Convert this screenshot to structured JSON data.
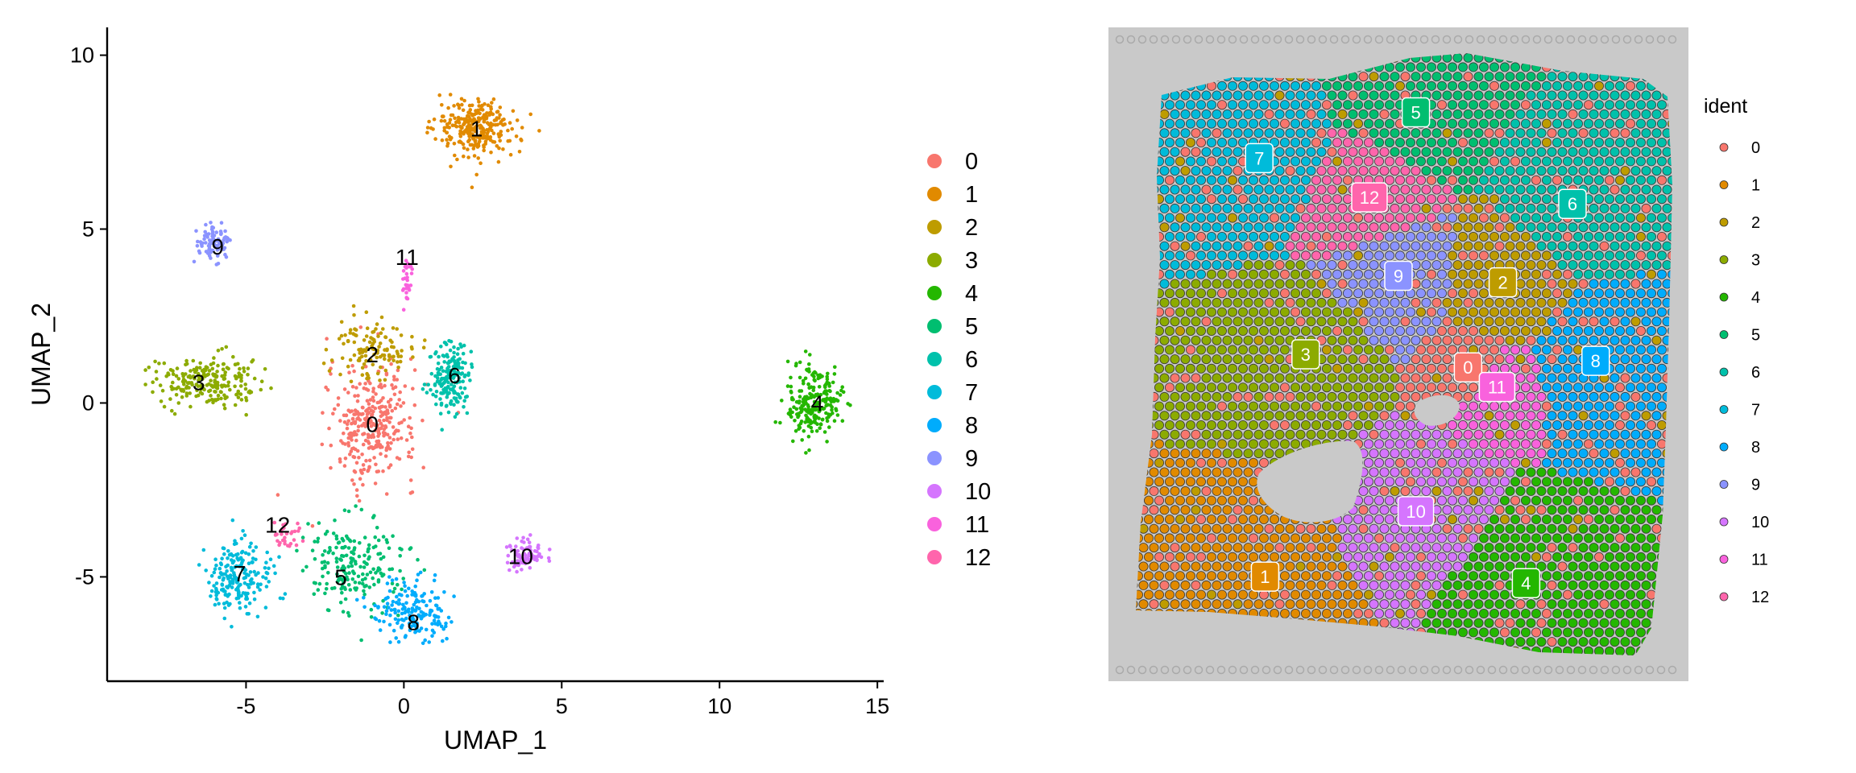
{
  "colors": [
    "#F8766D",
    "#E18A00",
    "#BE9C00",
    "#8CAB00",
    "#24B700",
    "#00BE70",
    "#00C1AB",
    "#00BBDA",
    "#00ACFC",
    "#8B93FF",
    "#D575FE",
    "#F962DD",
    "#FF65AC"
  ],
  "chart_data": [
    {
      "type": "scatter",
      "title": "",
      "xlabel": "UMAP_1",
      "ylabel": "UMAP_2",
      "xlim": [
        -9.4,
        15.2
      ],
      "ylim": [
        -8.0,
        10.8
      ],
      "x_ticks": [
        -5,
        0,
        5,
        10,
        15
      ],
      "y_ticks": [
        -5,
        0,
        5,
        10
      ],
      "x_tick_labels": [
        "-5",
        "0",
        "5",
        "10",
        "15"
      ],
      "y_tick_labels": [
        "-5",
        "0",
        "5",
        "10"
      ],
      "grid": false,
      "legend_position": "right",
      "legend_labels": [
        "0",
        "1",
        "2",
        "3",
        "4",
        "5",
        "6",
        "7",
        "8",
        "9",
        "10",
        "11",
        "12"
      ],
      "cluster_labels": [
        {
          "label": "0",
          "x": -1.0,
          "y": -0.6
        },
        {
          "label": "1",
          "x": 2.3,
          "y": 7.9
        },
        {
          "label": "2",
          "x": -1.0,
          "y": 1.4
        },
        {
          "label": "3",
          "x": -6.5,
          "y": 0.6
        },
        {
          "label": "4",
          "x": 13.1,
          "y": 0.0
        },
        {
          "label": "5",
          "x": -2.0,
          "y": -5.0
        },
        {
          "label": "6",
          "x": 1.6,
          "y": 0.8
        },
        {
          "label": "7",
          "x": -5.2,
          "y": -4.9
        },
        {
          "label": "8",
          "x": 0.3,
          "y": -6.3
        },
        {
          "label": "9",
          "x": -5.9,
          "y": 4.5
        },
        {
          "label": "10",
          "x": 3.7,
          "y": -4.4
        },
        {
          "label": "11",
          "x": 0.1,
          "y": 4.2
        },
        {
          "label": "12",
          "x": -4.0,
          "y": -3.5
        }
      ],
      "clusters": [
        {
          "id": 0,
          "n": 320,
          "cx": -1.0,
          "cy": -0.6,
          "sx": 1.0,
          "sy": 1.2
        },
        {
          "id": 1,
          "n": 280,
          "cx": 2.3,
          "cy": 7.9,
          "sx": 0.9,
          "sy": 0.6
        },
        {
          "id": 2,
          "n": 120,
          "cx": -1.0,
          "cy": 1.6,
          "sx": 0.9,
          "sy": 0.6
        },
        {
          "id": 3,
          "n": 220,
          "cx": -6.3,
          "cy": 0.6,
          "sx": 1.2,
          "sy": 0.5
        },
        {
          "id": 4,
          "n": 240,
          "cx": 13.0,
          "cy": 0.0,
          "sx": 0.6,
          "sy": 0.7
        },
        {
          "id": 5,
          "n": 200,
          "cx": -1.6,
          "cy": -4.6,
          "sx": 1.1,
          "sy": 1.0
        },
        {
          "id": 6,
          "n": 180,
          "cx": 1.5,
          "cy": 0.7,
          "sx": 0.5,
          "sy": 0.7
        },
        {
          "id": 7,
          "n": 200,
          "cx": -5.2,
          "cy": -5.0,
          "sx": 0.7,
          "sy": 0.7
        },
        {
          "id": 8,
          "n": 170,
          "cx": 0.3,
          "cy": -6.0,
          "sx": 0.8,
          "sy": 0.6
        },
        {
          "id": 9,
          "n": 80,
          "cx": -6.0,
          "cy": 4.6,
          "sx": 0.4,
          "sy": 0.4
        },
        {
          "id": 10,
          "n": 80,
          "cx": 3.8,
          "cy": -4.4,
          "sx": 0.5,
          "sy": 0.3
        },
        {
          "id": 11,
          "n": 30,
          "cx": 0.1,
          "cy": 3.6,
          "sx": 0.1,
          "sy": 0.5
        },
        {
          "id": 12,
          "n": 30,
          "cx": -3.8,
          "cy": -3.8,
          "sx": 0.4,
          "sy": 0.3
        }
      ]
    },
    {
      "type": "scatter",
      "title": "",
      "legend_title": "ident",
      "legend_position": "right",
      "legend_labels": [
        "0",
        "1",
        "2",
        "3",
        "4",
        "5",
        "6",
        "7",
        "8",
        "9",
        "10",
        "11",
        "12"
      ],
      "region_labels": [
        {
          "label": "5",
          "x": 0.53,
          "y": 0.13
        },
        {
          "label": "7",
          "x": 0.26,
          "y": 0.2
        },
        {
          "label": "12",
          "x": 0.45,
          "y": 0.26
        },
        {
          "label": "6",
          "x": 0.8,
          "y": 0.27
        },
        {
          "label": "9",
          "x": 0.5,
          "y": 0.38
        },
        {
          "label": "2",
          "x": 0.68,
          "y": 0.39
        },
        {
          "label": "3",
          "x": 0.34,
          "y": 0.5
        },
        {
          "label": "8",
          "x": 0.84,
          "y": 0.51
        },
        {
          "label": "0",
          "x": 0.62,
          "y": 0.52
        },
        {
          "label": "11",
          "x": 0.67,
          "y": 0.55
        },
        {
          "label": "10",
          "x": 0.53,
          "y": 0.74
        },
        {
          "label": "1",
          "x": 0.27,
          "y": 0.84
        },
        {
          "label": "4",
          "x": 0.72,
          "y": 0.85
        }
      ]
    }
  ]
}
